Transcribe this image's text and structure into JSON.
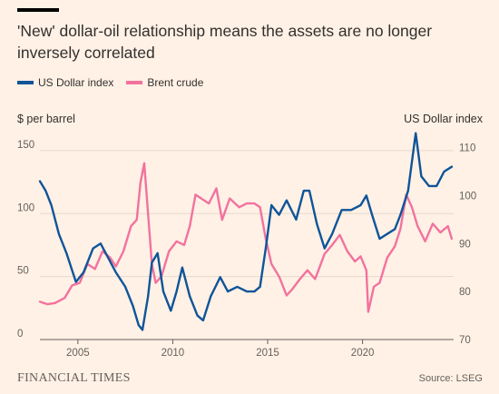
{
  "header": {
    "title": "'New' dollar-oil relationship means the assets are no longer inversely correlated"
  },
  "footer": {
    "brand": "FINANCIAL TIMES",
    "source": "Source: LSEG"
  },
  "colors": {
    "usd": "#0f5499",
    "brent": "#f2729f",
    "grid": "#e6d9ce",
    "axis": "#66605c",
    "background": "#fff1e5"
  },
  "chart_data": {
    "type": "line",
    "title": "'New' dollar-oil relationship means the assets are no longer inversely correlated",
    "ylabel_left": "$ per barrel",
    "ylabel_right": "US Dollar index",
    "x_ticks": [
      2005,
      2010,
      2015,
      2020
    ],
    "y_left_ticks": [
      0,
      50,
      100,
      150
    ],
    "y_right_ticks": [
      70,
      80,
      90,
      100,
      110
    ],
    "xlim": [
      2003.0,
      2024.8
    ],
    "ylim_left": [
      0,
      160
    ],
    "ylim_right": [
      70,
      112
    ],
    "grid": true,
    "legend_position": "top-left",
    "series": [
      {
        "name": "US Dollar index",
        "axis": "right",
        "color": "#0f5499",
        "x": [
          2003.0,
          2003.3,
          2003.6,
          2004.0,
          2004.4,
          2004.9,
          2005.3,
          2005.8,
          2006.2,
          2006.6,
          2007.0,
          2007.5,
          2007.9,
          2008.2,
          2008.4,
          2008.7,
          2008.9,
          2009.2,
          2009.5,
          2009.9,
          2010.2,
          2010.5,
          2010.9,
          2011.3,
          2011.6,
          2012.0,
          2012.5,
          2012.9,
          2013.4,
          2013.9,
          2014.3,
          2014.6,
          2014.9,
          2015.2,
          2015.6,
          2016.0,
          2016.5,
          2016.9,
          2017.2,
          2017.6,
          2018.0,
          2018.4,
          2018.9,
          2019.4,
          2019.9,
          2020.2,
          2020.5,
          2020.9,
          2021.3,
          2021.7,
          2022.0,
          2022.4,
          2022.8,
          2023.1,
          2023.5,
          2023.9,
          2024.3,
          2024.7
        ],
        "values": [
          103,
          101,
          98,
          92,
          88,
          82,
          84,
          89,
          90,
          87,
          84,
          81,
          77,
          73,
          72,
          79,
          86,
          88,
          80,
          76,
          80,
          85,
          79,
          75,
          74,
          79,
          83,
          80,
          81,
          80,
          80,
          81,
          89,
          98,
          96,
          99,
          95,
          101,
          101,
          94,
          89,
          92,
          97,
          97,
          98,
          100,
          96,
          91,
          92,
          93,
          96,
          101,
          113,
          104,
          102,
          102,
          105,
          106
        ]
      },
      {
        "name": "Brent crude",
        "axis": "left",
        "color": "#f2729f",
        "x": [
          2003.0,
          2003.4,
          2003.8,
          2004.3,
          2004.7,
          2005.1,
          2005.5,
          2005.9,
          2006.3,
          2006.7,
          2007.0,
          2007.4,
          2007.8,
          2008.1,
          2008.3,
          2008.5,
          2008.7,
          2008.9,
          2009.1,
          2009.4,
          2009.8,
          2010.2,
          2010.6,
          2010.9,
          2011.2,
          2011.5,
          2011.9,
          2012.3,
          2012.6,
          2013.0,
          2013.5,
          2013.9,
          2014.3,
          2014.6,
          2014.9,
          2015.2,
          2015.6,
          2016.0,
          2016.3,
          2016.7,
          2017.1,
          2017.5,
          2018.0,
          2018.4,
          2018.8,
          2019.2,
          2019.6,
          2019.9,
          2020.2,
          2020.3,
          2020.6,
          2020.9,
          2021.3,
          2021.7,
          2022.0,
          2022.3,
          2022.6,
          2022.9,
          2023.3,
          2023.7,
          2024.1,
          2024.5,
          2024.7
        ],
        "values": [
          30,
          28,
          29,
          33,
          43,
          45,
          60,
          56,
          70,
          65,
          58,
          70,
          90,
          95,
          125,
          140,
          100,
          60,
          45,
          50,
          70,
          78,
          75,
          90,
          115,
          112,
          108,
          120,
          95,
          112,
          105,
          108,
          108,
          105,
          80,
          60,
          50,
          35,
          40,
          48,
          55,
          48,
          68,
          75,
          83,
          70,
          62,
          66,
          55,
          22,
          42,
          45,
          65,
          74,
          88,
          115,
          105,
          90,
          78,
          92,
          85,
          90,
          80
        ]
      }
    ]
  }
}
